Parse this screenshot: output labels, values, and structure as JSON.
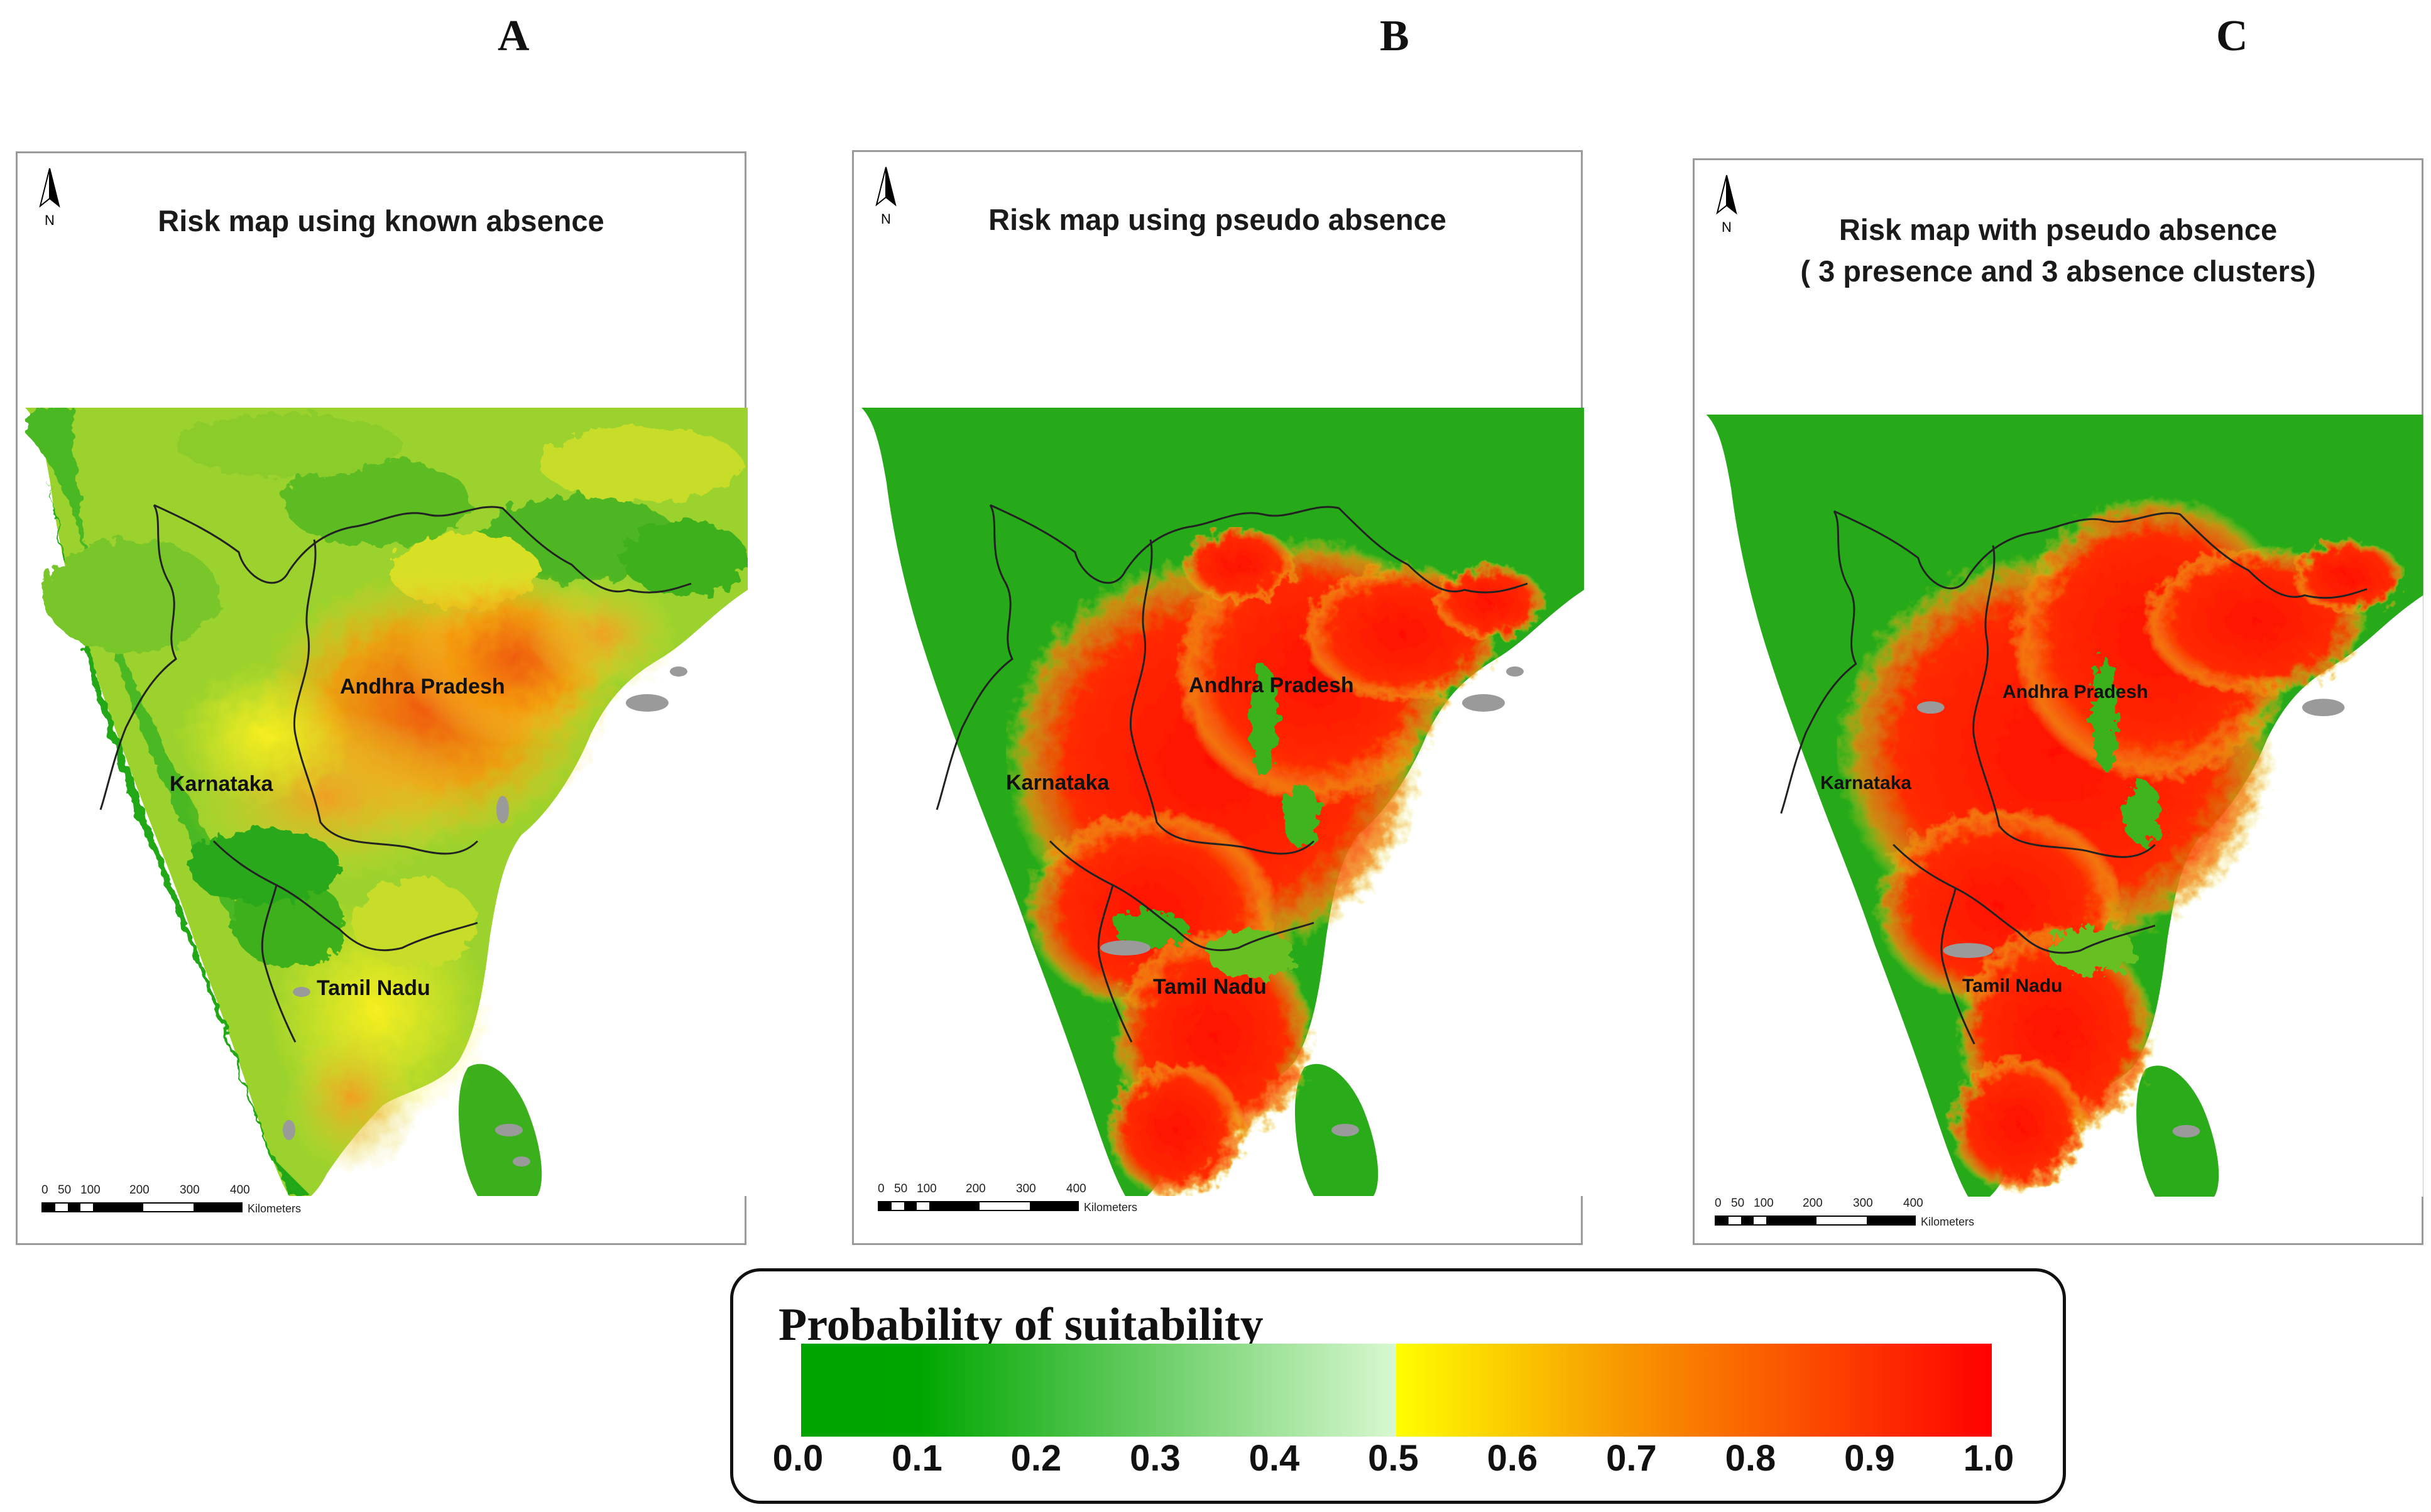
{
  "panels": [
    {
      "letter": "A",
      "title_lines": [
        "Risk map using known absence"
      ],
      "north_label": "N",
      "scale_ticks": [
        "0",
        "50",
        "100",
        "200",
        "300",
        "400"
      ],
      "scale_unit": "Kilometers",
      "regions": [
        "Andhra Pradesh",
        "Karnataka",
        "Tamil Nadu"
      ]
    },
    {
      "letter": "B",
      "title_lines": [
        "Risk map using pseudo absence"
      ],
      "north_label": "N",
      "scale_ticks": [
        "0",
        "50",
        "100",
        "200",
        "300",
        "400"
      ],
      "scale_unit": "Kilometers",
      "regions": [
        "Andhra Pradesh",
        "Karnataka",
        "Tamil Nadu"
      ]
    },
    {
      "letter": "C",
      "title_lines": [
        "Risk map with pseudo absence",
        "( 3 presence and 3 absence clusters)"
      ],
      "north_label": "N",
      "scale_ticks": [
        "0",
        "50",
        "100",
        "200",
        "300",
        "400"
      ],
      "scale_unit": "Kilometers",
      "regions": [
        "Andhra Pradesh",
        "Karnataka",
        "Tamil Nadu"
      ]
    }
  ],
  "legend": {
    "title": "Probability of suitability",
    "ticks": [
      "0.0",
      "0.1",
      "0.2",
      "0.3",
      "0.4",
      "0.5",
      "0.6",
      "0.7",
      "0.8",
      "0.9",
      "1.0"
    ],
    "colors": {
      "green_dark": "#00a400",
      "green_light": "#d8f8d0",
      "yellow": "#ffff00",
      "orange": "#f7a000",
      "red": "#ff0000"
    }
  }
}
